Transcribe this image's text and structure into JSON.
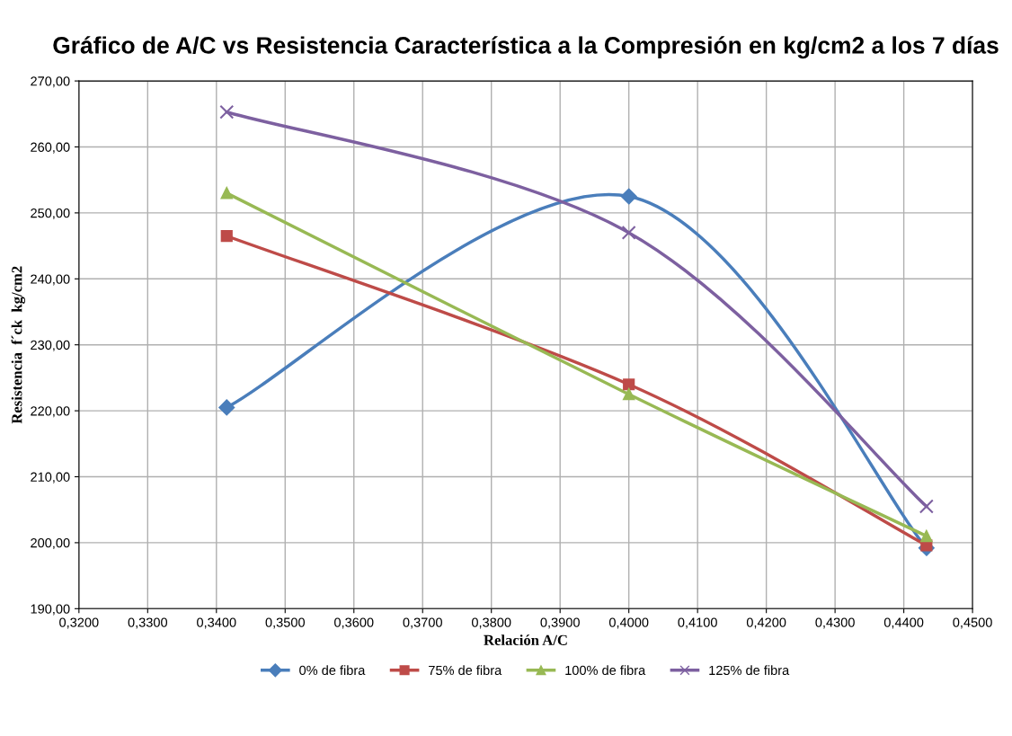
{
  "chart_data": {
    "type": "line",
    "title": "Gráfico de A/C vs Resistencia Característica a la Compresión en kg/cm2 a los 7 días",
    "xlabel": "Relación A/C",
    "ylabel": "Resistencia  f´ck  kg/cm2",
    "x": [
      0.3415,
      0.4,
      0.4433
    ],
    "series": [
      {
        "name": "0% de fibra",
        "color": "#4a7ebb",
        "marker": "diamond",
        "values": [
          220.5,
          252.5,
          199.2
        ]
      },
      {
        "name": "75% de fibra",
        "color": "#be4b48",
        "marker": "square",
        "values": [
          246.5,
          224.0,
          199.6
        ]
      },
      {
        "name": "100% de fibra",
        "color": "#98b954",
        "marker": "triangle",
        "values": [
          253.0,
          222.5,
          201.0
        ]
      },
      {
        "name": "125% de fibra",
        "color": "#7d60a0",
        "marker": "cross",
        "values": [
          265.3,
          247.0,
          205.5
        ]
      }
    ],
    "xlim": [
      0.32,
      0.45
    ],
    "xticks": [
      {
        "value": 0.32,
        "label": "0,3200"
      },
      {
        "value": 0.33,
        "label": "0,3300"
      },
      {
        "value": 0.34,
        "label": "0,3400"
      },
      {
        "value": 0.35,
        "label": "0,3500"
      },
      {
        "value": 0.36,
        "label": "0,3600"
      },
      {
        "value": 0.37,
        "label": "0,3700"
      },
      {
        "value": 0.38,
        "label": "0,3800"
      },
      {
        "value": 0.39,
        "label": "0,3900"
      },
      {
        "value": 0.4,
        "label": "0,4000"
      },
      {
        "value": 0.41,
        "label": "0,4100"
      },
      {
        "value": 0.42,
        "label": "0,4200"
      },
      {
        "value": 0.43,
        "label": "0,4300"
      },
      {
        "value": 0.44,
        "label": "0,4400"
      },
      {
        "value": 0.45,
        "label": "0,4500"
      }
    ],
    "ylim": [
      190,
      270
    ],
    "yticks": [
      {
        "value": 190,
        "label": "190,00"
      },
      {
        "value": 200,
        "label": "200,00"
      },
      {
        "value": 210,
        "label": "210,00"
      },
      {
        "value": 220,
        "label": "220,00"
      },
      {
        "value": 230,
        "label": "230,00"
      },
      {
        "value": 240,
        "label": "240,00"
      },
      {
        "value": 250,
        "label": "250,00"
      },
      {
        "value": 260,
        "label": "260,00"
      },
      {
        "value": 270,
        "label": "270,00"
      }
    ],
    "grid": true,
    "legend": "bottom",
    "line_style": "solid"
  }
}
